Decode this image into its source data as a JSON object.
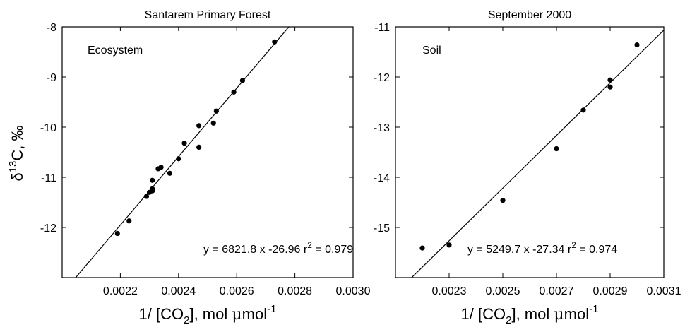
{
  "chart_data": [
    {
      "type": "scatter",
      "title": "Santarem Primary Forest",
      "ylabel": "δ¹³C, ‰",
      "ylabel_parts": {
        "delta": "δ",
        "sup": "13",
        "rest": "C, ‰"
      },
      "xlabel_parts": {
        "pre": "1/ [CO",
        "sub": "2",
        "mid": "], mol ",
        "mu": "μ",
        "post": "mol",
        "sup": "-1"
      },
      "label": "Ecosystem",
      "equation": "y = 6821.8 x -26.96",
      "r2_label": "r",
      "r2_sup": "2",
      "r2_value": " = 0.979",
      "xlim": [
        0.002,
        0.003
      ],
      "ylim": [
        -13,
        -8
      ],
      "xticks": [
        "0.0022",
        "0.0024",
        "0.0026",
        "0.0028",
        "0.0030"
      ],
      "xtick_values": [
        0.0022,
        0.0024,
        0.0026,
        0.0028,
        0.003
      ],
      "yticks": [
        "-8",
        "-9",
        "-10",
        "-11",
        "-12"
      ],
      "ytick_values": [
        -8,
        -9,
        -10,
        -11,
        -12
      ],
      "fit": {
        "slope": 6821.8,
        "intercept": -26.96
      },
      "x": [
        0.00219,
        0.00223,
        0.00229,
        0.0023,
        0.00231,
        0.00231,
        0.00231,
        0.00233,
        0.00234,
        0.00237,
        0.0024,
        0.00242,
        0.00247,
        0.00247,
        0.00252,
        0.00253,
        0.00259,
        0.00262,
        0.00273
      ],
      "y": [
        -12.12,
        -11.87,
        -11.38,
        -11.3,
        -11.27,
        -11.23,
        -11.06,
        -10.83,
        -10.8,
        -10.92,
        -10.63,
        -10.32,
        -10.4,
        -9.97,
        -9.92,
        -9.68,
        -9.3,
        -9.07,
        -8.3
      ]
    },
    {
      "type": "scatter",
      "title": "September 2000",
      "xlabel_parts": {
        "pre": "1/ [CO",
        "sub": "2",
        "mid": "], mol ",
        "mu": "μ",
        "post": "mol",
        "sup": "-1"
      },
      "label": "Soil",
      "equation": "y = 5249.7 x -27.34",
      "r2_label": "r",
      "r2_sup": "2",
      "r2_value": " = 0.974",
      "xlim": [
        0.0021,
        0.0031
      ],
      "ylim": [
        -16,
        -11
      ],
      "xticks": [
        "0.0023",
        "0.0025",
        "0.0027",
        "0.0029",
        "0.0031"
      ],
      "xtick_values": [
        0.0023,
        0.0025,
        0.0027,
        0.0029,
        0.0031
      ],
      "yticks": [
        "-11",
        "-12",
        "-13",
        "-14",
        "-15"
      ],
      "ytick_values": [
        -11,
        -12,
        -13,
        -14,
        -15
      ],
      "fit": {
        "slope": 5249.7,
        "intercept": -27.34
      },
      "x": [
        0.0022,
        0.0023,
        0.0025,
        0.0027,
        0.0028,
        0.0029,
        0.0029,
        0.003
      ],
      "y": [
        -15.41,
        -15.35,
        -14.46,
        -13.43,
        -12.66,
        -12.2,
        -12.06,
        -11.36
      ]
    }
  ]
}
